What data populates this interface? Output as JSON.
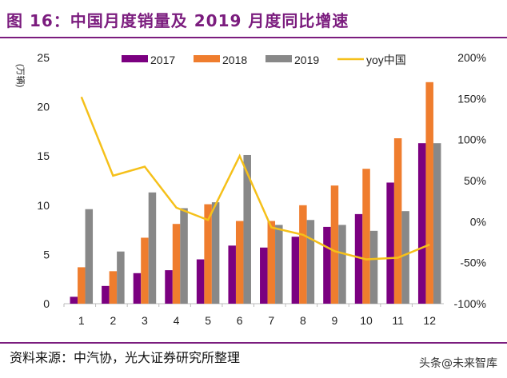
{
  "title": "图 16：中国月度销量及 2019 月度同比增速",
  "footer": {
    "source": "资料来源：中汽协，光大证券研究所整理",
    "watermark": "头条@未来智库"
  },
  "chart_data": {
    "type": "bar",
    "title": "",
    "ylabel": "(万辆)",
    "categories": [
      "1",
      "2",
      "3",
      "4",
      "5",
      "6",
      "7",
      "8",
      "9",
      "10",
      "11",
      "12"
    ],
    "ylim": [
      0,
      25
    ],
    "yticks": [
      "0",
      "5",
      "10",
      "15",
      "20",
      "25"
    ],
    "y2lim": [
      -100,
      200
    ],
    "y2ticks": [
      "-100%",
      "-50%",
      "0%",
      "50%",
      "100%",
      "150%",
      "200%"
    ],
    "legend": "top",
    "grid": false,
    "series": [
      {
        "name": "2017",
        "type": "bar",
        "color": "#7b0080",
        "values": [
          0.7,
          1.8,
          3.1,
          3.4,
          4.5,
          5.9,
          5.7,
          6.8,
          7.8,
          9.1,
          12.3,
          16.3
        ]
      },
      {
        "name": "2018",
        "type": "bar",
        "color": "#ef7d2e",
        "values": [
          3.7,
          3.3,
          6.7,
          8.1,
          10.1,
          8.4,
          8.4,
          10.0,
          12.0,
          13.7,
          16.8,
          22.5
        ]
      },
      {
        "name": "2019",
        "type": "bar",
        "color": "#888888",
        "values": [
          9.6,
          5.3,
          11.3,
          9.7,
          10.3,
          15.1,
          8.0,
          8.5,
          8.0,
          7.4,
          9.4,
          16.3
        ]
      },
      {
        "name": "yoy中国",
        "type": "line",
        "axis": "right",
        "color": "#f5c01a",
        "values": [
          152,
          56,
          67,
          17,
          2,
          80,
          -7,
          -16,
          -36,
          -46,
          -44,
          -28
        ]
      }
    ]
  }
}
